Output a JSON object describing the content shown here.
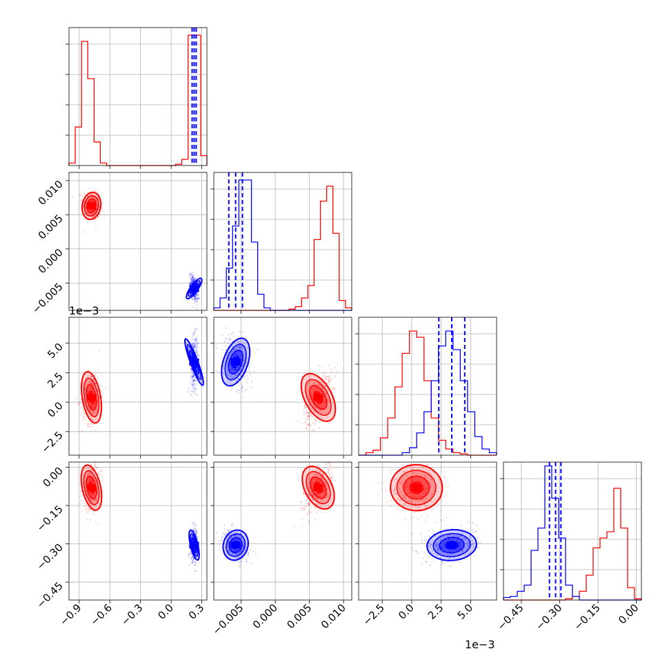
{
  "chart_data": {
    "type": "scatter",
    "variables": [
      {
        "ticks": [
          -0.9,
          -0.6,
          -0.3,
          0.0,
          0.3
        ],
        "tick_labels": [
          "−0.9",
          "−0.6",
          "−0.3",
          "0.0",
          "0.3"
        ],
        "range": [
          -1.0,
          0.35
        ],
        "offset_label": ""
      },
      {
        "ticks": [
          -0.005,
          0.0,
          0.005,
          0.01
        ],
        "tick_labels": [
          "−0.005",
          "0.000",
          "0.005",
          "0.010"
        ],
        "range": [
          -0.009,
          0.0112
        ],
        "offset_label": ""
      },
      {
        "ticks": [
          -2.5,
          0.0,
          2.5,
          5.0
        ],
        "tick_labels": [
          "−2.5",
          "0.0",
          "2.5",
          "5.0"
        ],
        "range": [
          -4.5,
          7.2
        ],
        "offset_label": "1e−3"
      },
      {
        "ticks": [
          -0.45,
          -0.3,
          -0.15,
          0.0
        ],
        "tick_labels": [
          "−0.45",
          "−0.30",
          "−0.15",
          "0.00"
        ],
        "range": [
          -0.52,
          0.02
        ],
        "offset_label": ""
      }
    ],
    "series": [
      {
        "color": "#ff0000",
        "mean": [
          -0.78,
          0.0063,
          0.4,
          -0.08
        ],
        "sd": [
          0.045,
          0.001,
          1.1,
          0.045
        ],
        "quantiles": []
      },
      {
        "color": "#0000ff",
        "mean": [
          0.225,
          -0.0058,
          3.4,
          -0.305
        ],
        "sd": [
          0.018,
          0.0009,
          1.05,
          0.03
        ],
        "quantiles": [
          [
            0.205,
            0.225,
            0.245
          ],
          [
            -0.0068,
            -0.0058,
            -0.0048
          ],
          [
            2.3,
            3.4,
            4.5
          ],
          [
            -0.34,
            -0.316,
            -0.295
          ]
        ]
      }
    ],
    "histograms": [
      {
        "red": [
          0.02,
          0.31,
          1.0,
          0.7,
          0.19,
          0.02,
          0,
          0,
          0,
          0,
          0,
          0,
          0,
          0,
          0,
          0,
          0,
          0.01,
          0.05,
          1.05,
          1.05,
          0.08
        ],
        "blue": []
      },
      {
        "red": [
          0,
          0,
          0,
          0,
          0,
          0,
          0,
          0,
          0,
          0,
          0,
          0,
          0.01,
          0.03,
          0.1,
          0.2,
          0.57,
          0.88,
          1.0,
          0.62,
          0.08,
          0.02
        ],
        "blue": [
          0.02,
          0.1,
          0.34,
          0.68,
          1.05,
          1.05,
          0.55,
          0.13,
          0.02,
          0,
          0,
          0,
          0,
          0,
          0,
          0,
          0,
          0,
          0,
          0,
          0,
          0
        ]
      },
      {
        "red": [
          0,
          0.02,
          0.04,
          0.14,
          0.3,
          0.55,
          0.82,
          1.0,
          0.95,
          0.6,
          0.3,
          0.12,
          0.05,
          0.02,
          0.01,
          0,
          0,
          0,
          0
        ],
        "blue": [
          0,
          0,
          0,
          0,
          0,
          0,
          0.02,
          0.06,
          0.18,
          0.35,
          0.6,
          0.88,
          1.0,
          0.85,
          0.6,
          0.35,
          0.15,
          0.05,
          0.02
        ]
      },
      {
        "red": [
          0,
          0,
          0,
          0,
          0,
          0,
          0,
          0,
          0,
          0.01,
          0.03,
          0.07,
          0.2,
          0.42,
          0.5,
          0.55,
          0.9,
          0.58,
          0.1,
          0.01
        ],
        "blue": [
          0.02,
          0.03,
          0.07,
          0.12,
          0.4,
          0.58,
          1.08,
          0.82,
          0.5,
          0.12,
          0.03,
          0,
          0,
          0,
          0,
          0,
          0,
          0,
          0,
          0
        ]
      }
    ],
    "grid": true
  }
}
